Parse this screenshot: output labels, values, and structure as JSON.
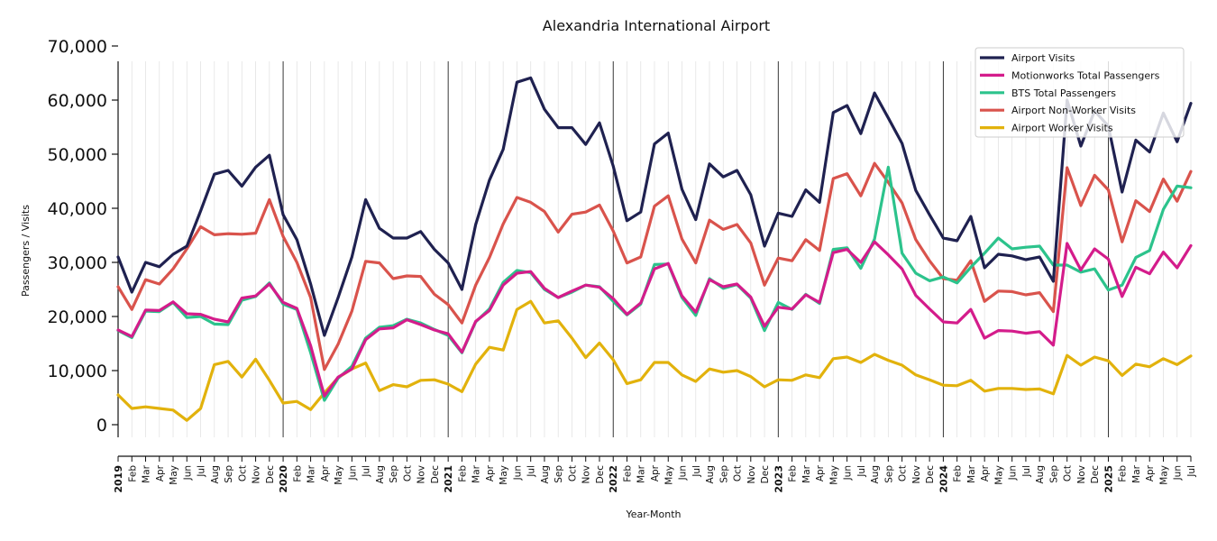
{
  "chart_data": {
    "type": "line",
    "title": "Alexandria International Airport",
    "xlabel": "Year-Month",
    "ylabel": "Passengers / Visits",
    "ylim": [
      -2000,
      67000
    ],
    "yticks": [
      0,
      10000,
      20000,
      30000,
      40000,
      50000,
      60000,
      70000
    ],
    "ytick_labels": [
      "0",
      "10,000",
      "20,000",
      "30,000",
      "40,000",
      "50,000",
      "60,000",
      "70,000"
    ],
    "grid": "vertical monthly lines; year boundaries emphasized",
    "legend_position": "top-right",
    "colors": {
      "Airport Visits": "#1f2150",
      "Motionworks Total Passengers": "#d41c8b",
      "BTS Total Passengers": "#2cc38c",
      "Airport Non-Worker Visits": "#d9534c",
      "Airport Worker Visits": "#e2b20c"
    },
    "x": [
      "2019-01",
      "2019-02",
      "2019-03",
      "2019-04",
      "2019-05",
      "2019-06",
      "2019-07",
      "2019-08",
      "2019-09",
      "2019-10",
      "2019-11",
      "2019-12",
      "2020-01",
      "2020-02",
      "2020-03",
      "2020-04",
      "2020-05",
      "2020-06",
      "2020-07",
      "2020-08",
      "2020-09",
      "2020-10",
      "2020-11",
      "2020-12",
      "2021-01",
      "2021-02",
      "2021-03",
      "2021-04",
      "2021-05",
      "2021-06",
      "2021-07",
      "2021-08",
      "2021-09",
      "2021-10",
      "2021-11",
      "2021-12",
      "2022-01",
      "2022-02",
      "2022-03",
      "2022-04",
      "2022-05",
      "2022-06",
      "2022-07",
      "2022-08",
      "2022-09",
      "2022-10",
      "2022-11",
      "2022-12",
      "2023-01",
      "2023-02",
      "2023-03",
      "2023-04",
      "2023-05",
      "2023-06",
      "2023-07",
      "2023-08",
      "2023-09",
      "2023-10",
      "2023-11",
      "2023-12",
      "2024-01",
      "2024-02",
      "2024-03",
      "2024-04",
      "2024-05",
      "2024-06",
      "2024-07",
      "2024-08",
      "2024-09",
      "2024-10",
      "2024-11",
      "2024-12",
      "2025-01",
      "2025-02",
      "2025-03",
      "2025-04",
      "2025-05",
      "2025-06",
      "2025-07"
    ],
    "x_tick_labels": [
      "2019",
      "Feb",
      "Mar",
      "Apr",
      "May",
      "Jun",
      "Jul",
      "Aug",
      "Sep",
      "Oct",
      "Nov",
      "Dec",
      "2020",
      "Feb",
      "Mar",
      "Apr",
      "May",
      "Jun",
      "Jul",
      "Aug",
      "Sep",
      "Oct",
      "Nov",
      "Dec",
      "2021",
      "Feb",
      "Mar",
      "Apr",
      "May",
      "Jun",
      "Jul",
      "Aug",
      "Sep",
      "Oct",
      "Nov",
      "Dec",
      "2022",
      "Feb",
      "Mar",
      "Apr",
      "May",
      "Jun",
      "Jul",
      "Aug",
      "Sep",
      "Oct",
      "Nov",
      "Dec",
      "2023",
      "Feb",
      "Mar",
      "Apr",
      "May",
      "Jun",
      "Jul",
      "Aug",
      "Sep",
      "Oct",
      "Nov",
      "Dec",
      "2024",
      "Feb",
      "Mar",
      "Apr",
      "May",
      "Jun",
      "Jul",
      "Aug",
      "Sep",
      "Oct",
      "Nov",
      "Dec",
      "2025",
      "Feb",
      "Mar",
      "Apr",
      "May",
      "Jun",
      "Jul"
    ],
    "series": [
      {
        "name": "Airport Visits",
        "values": [
          31000,
          24500,
          30000,
          29200,
          31500,
          33000,
          39500,
          46300,
          47000,
          44100,
          47600,
          49800,
          38800,
          34200,
          26000,
          16500,
          23500,
          31000,
          41600,
          36300,
          34500,
          34500,
          35700,
          32400,
          29900,
          25000,
          37000,
          45200,
          50900,
          63300,
          64100,
          58300,
          54900,
          54900,
          51800,
          55800,
          47800,
          37700,
          39300,
          51900,
          53900,
          43500,
          37900,
          48200,
          45800,
          47000,
          42500,
          33000,
          39100,
          38500,
          43400,
          41100,
          57700,
          59000,
          53800,
          61300,
          56700,
          52000,
          43300,
          38800,
          34500,
          34000,
          38500,
          29000,
          31500,
          31200,
          30500,
          31000,
          26500,
          60000,
          51500,
          58000,
          55200,
          43000,
          52600,
          50400,
          57600,
          52300,
          59400
        ]
      },
      {
        "name": "Motionworks Total Passengers",
        "values": [
          17500,
          16300,
          21200,
          21100,
          22700,
          20500,
          20400,
          19500,
          19000,
          23400,
          23800,
          26000,
          22600,
          21500,
          14600,
          5300,
          8800,
          10300,
          15700,
          17700,
          17900,
          19400,
          18500,
          17500,
          16800,
          13400,
          19100,
          21100,
          25800,
          28000,
          28300,
          25200,
          23500,
          24700,
          25800,
          25400,
          23300,
          20400,
          22500,
          28800,
          29800,
          23800,
          20800,
          26800,
          25500,
          26000,
          23600,
          18200,
          21700,
          21400,
          24000,
          22600,
          31800,
          32400,
          30000,
          33800,
          31400,
          28800,
          23900,
          21400,
          19000,
          18800,
          21300,
          16000,
          17400,
          17300,
          16900,
          17200,
          14700,
          33500,
          28600,
          32500,
          30600,
          23700,
          29100,
          27900,
          31900,
          29000,
          33100
        ]
      },
      {
        "name": "BTS Total Passengers",
        "values": [
          17400,
          16100,
          21000,
          20900,
          22600,
          19800,
          20000,
          18600,
          18500,
          23000,
          23700,
          26200,
          22300,
          21300,
          13300,
          4500,
          8600,
          10800,
          16000,
          18000,
          18300,
          19500,
          18800,
          17600,
          16500,
          13300,
          19000,
          21400,
          26300,
          28500,
          28100,
          25000,
          23500,
          24500,
          25800,
          25500,
          22800,
          20300,
          22300,
          29600,
          29700,
          23500,
          20200,
          27000,
          25200,
          25900,
          23400,
          17400,
          22600,
          21300,
          24100,
          22400,
          32400,
          32700,
          28900,
          34300,
          47600,
          31700,
          28000,
          26600,
          27300,
          26200,
          29100,
          31700,
          34500,
          32500,
          32800,
          33000,
          29500,
          29500,
          28200,
          28800,
          24900,
          25800,
          30900,
          32200,
          39800,
          44100,
          43800
        ]
      },
      {
        "name": "Airport Non-Worker Visits",
        "values": [
          25500,
          21300,
          26800,
          26000,
          28800,
          32500,
          36600,
          35100,
          35300,
          35200,
          35400,
          41600,
          34800,
          30000,
          23500,
          10200,
          14900,
          21000,
          30200,
          29900,
          27000,
          27500,
          27400,
          24100,
          22200,
          18800,
          25800,
          30900,
          37100,
          42000,
          41100,
          39400,
          35600,
          38900,
          39300,
          40600,
          35800,
          29900,
          31000,
          40400,
          42300,
          34300,
          29900,
          37800,
          36100,
          37000,
          33600,
          25800,
          30800,
          30300,
          34200,
          32200,
          45500,
          46400,
          42300,
          48300,
          44800,
          41000,
          34200,
          30300,
          27000,
          26700,
          30300,
          22800,
          24700,
          24600,
          24000,
          24400,
          20900,
          47500,
          40500,
          46100,
          43400,
          33800,
          41400,
          39400,
          45400,
          41300,
          46800
        ]
      },
      {
        "name": "Airport Worker Visits",
        "values": [
          5500,
          3000,
          3300,
          3000,
          2700,
          800,
          3000,
          11100,
          11700,
          8800,
          12100,
          8200,
          4000,
          4300,
          2800,
          5900,
          8700,
          10300,
          11400,
          6300,
          7400,
          7000,
          8200,
          8300,
          7500,
          6100,
          11200,
          14300,
          13800,
          21300,
          22800,
          18800,
          19200,
          16000,
          12400,
          15100,
          12000,
          7600,
          8300,
          11500,
          11500,
          9200,
          8000,
          10300,
          9700,
          10000,
          8900,
          7000,
          8300,
          8200,
          9200,
          8700,
          12200,
          12500,
          11500,
          13000,
          11900,
          11000,
          9200,
          8300,
          7300,
          7200,
          8200,
          6200,
          6700,
          6700,
          6500,
          6600,
          5700,
          12800,
          11000,
          12500,
          11800,
          9100,
          11200,
          10700,
          12200,
          11100,
          12700
        ]
      }
    ]
  }
}
